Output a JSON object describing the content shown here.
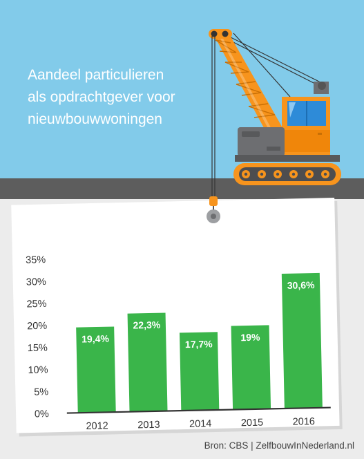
{
  "header": {
    "title_lines": [
      "Aandeel particulieren",
      "als opdrachtgever voor",
      "nieuwbouwwoningen"
    ]
  },
  "colors": {
    "sky": "#82cbea",
    "road": "#5d5d5d",
    "ground": "#ececec",
    "bar": "#3ab54a",
    "crane_orange": "#f7941d",
    "crane_gray": "#6d6e71",
    "cabin_window": "#2e8bd8"
  },
  "icons": {
    "illustration": "crawler-crane-icon",
    "hook": "crane-hook-icon"
  },
  "chart_data": {
    "type": "bar",
    "categories": [
      "2012",
      "2013",
      "2014",
      "2015",
      "2016"
    ],
    "values": [
      19.4,
      22.3,
      17.7,
      19,
      30.6
    ],
    "value_labels": [
      "19,4%",
      "22,3%",
      "17,7%",
      "19%",
      "30,6%"
    ],
    "ylim": [
      0,
      35
    ],
    "yticks": [
      0,
      5,
      10,
      15,
      20,
      25,
      30,
      35
    ],
    "ytick_labels": [
      "0%",
      "5%",
      "10%",
      "15%",
      "20%",
      "25%",
      "30%",
      "35%"
    ],
    "grid": false,
    "legend": false
  },
  "footer": {
    "source": "Bron: CBS | ZelfbouwInNederland.nl"
  }
}
